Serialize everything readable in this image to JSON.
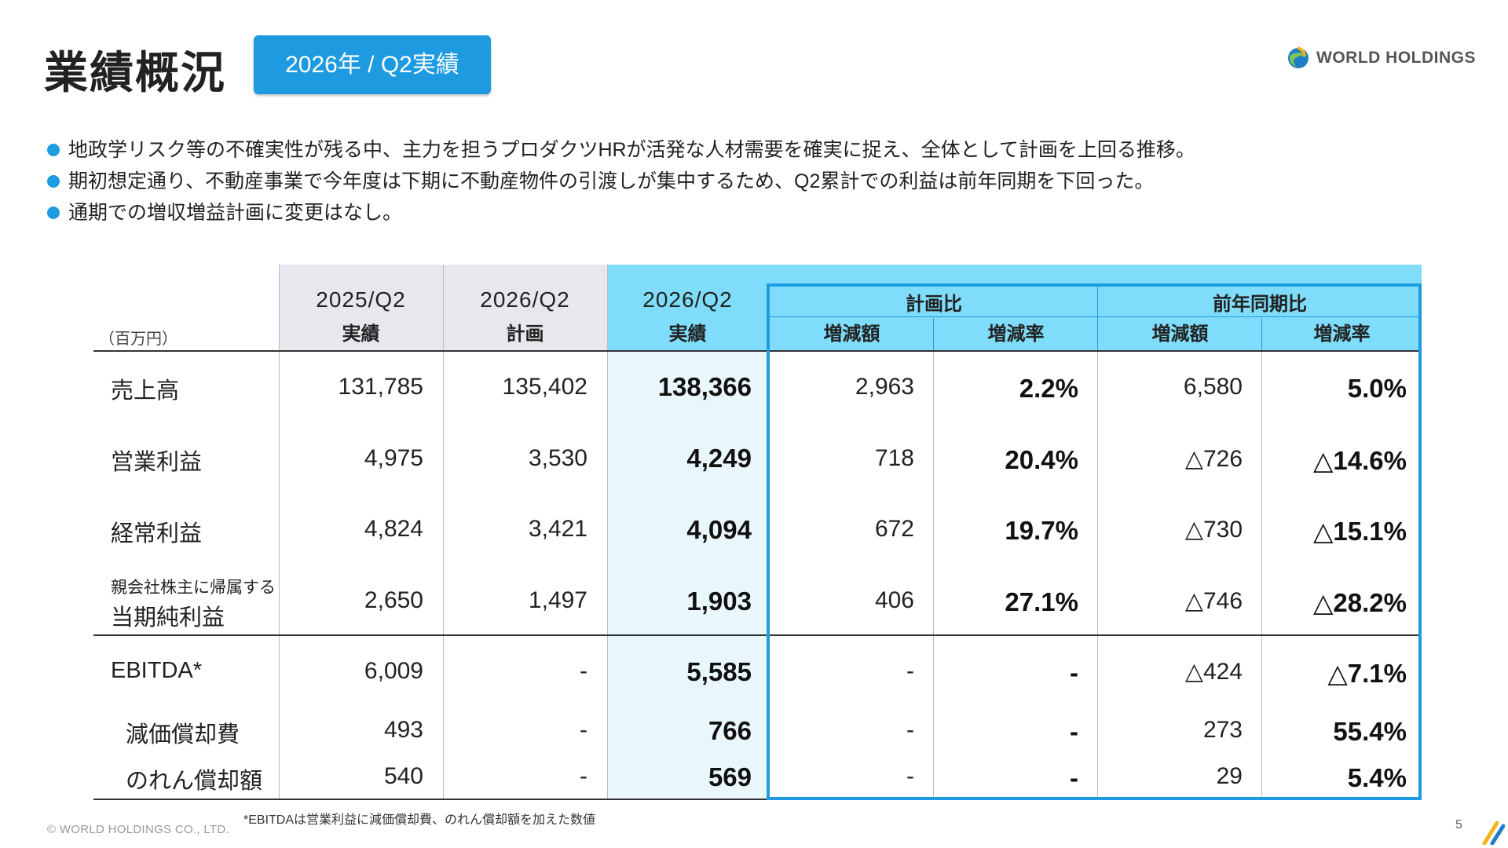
{
  "header": {
    "title": "業績概況",
    "badge": "2026年 / Q2実績",
    "logo_text": "WORLD HOLDINGS"
  },
  "bullets": [
    "地政学リスク等の不確実性が残る中、主力を担うプロダクツHRが活発な人材需要を確実に捉え、全体として計画を上回る推移。",
    "期初想定通り、不動産事業で今年度は下期に不動産物件の引渡しが集中するため、Q2累計での利益は前年同期を下回った。",
    "通期での増収増益計画に変更はなし。"
  ],
  "table": {
    "unit": "（百万円）",
    "columns": [
      {
        "year": "2025/Q2",
        "sub": "実績"
      },
      {
        "year": "2026/Q2",
        "sub": "計画"
      },
      {
        "year": "2026/Q2",
        "sub": "実績"
      }
    ],
    "group_plan": {
      "title": "計画比",
      "amount": "増減額",
      "rate": "増減率"
    },
    "group_prev": {
      "title": "前年同期比",
      "amount": "増減額",
      "rate": "増減率"
    },
    "rows": [
      {
        "label": "売上高",
        "v2025": "131,785",
        "plan": "135,402",
        "actual": "138,366",
        "plan_diff": "2,963",
        "plan_rate": "2.2%",
        "prev_diff": "6,580",
        "prev_rate": "5.0%"
      },
      {
        "label": "営業利益",
        "v2025": "4,975",
        "plan": "3,530",
        "actual": "4,249",
        "plan_diff": "718",
        "plan_rate": "20.4%",
        "prev_diff": "△726",
        "prev_rate": "△14.6%"
      },
      {
        "label": "経常利益",
        "v2025": "4,824",
        "plan": "3,421",
        "actual": "4,094",
        "plan_diff": "672",
        "plan_rate": "19.7%",
        "prev_diff": "△730",
        "prev_rate": "△15.1%"
      },
      {
        "label_small": "親会社株主に帰属する",
        "label": "当期純利益",
        "v2025": "2,650",
        "plan": "1,497",
        "actual": "1,903",
        "plan_diff": "406",
        "plan_rate": "27.1%",
        "prev_diff": "△746",
        "prev_rate": "△28.2%"
      },
      {
        "label": "EBITDA*",
        "v2025": "6,009",
        "plan": "-",
        "actual": "5,585",
        "plan_diff": "-",
        "plan_rate": "-",
        "prev_diff": "△424",
        "prev_rate": "△7.1%"
      },
      {
        "label": "減価償却費",
        "v2025": "493",
        "plan": "-",
        "actual": "766",
        "plan_diff": "-",
        "plan_rate": "-",
        "prev_diff": "273",
        "prev_rate": "55.4%"
      },
      {
        "label": "のれん償却額",
        "v2025": "540",
        "plan": "-",
        "actual": "569",
        "plan_diff": "-",
        "plan_rate": "-",
        "prev_diff": "29",
        "prev_rate": "5.4%"
      }
    ]
  },
  "footnote": "*EBITDAは営業利益に減価償却費、のれん償却額を加えた数値",
  "footer": {
    "copyright": "© WORLD HOLDINGS CO., LTD.",
    "page": "5"
  },
  "colors": {
    "accent": "#1e9be0",
    "header_blue": "#7fdcfa",
    "body_blue": "#e9f7fd",
    "header_gray": "#e6e8ed"
  }
}
